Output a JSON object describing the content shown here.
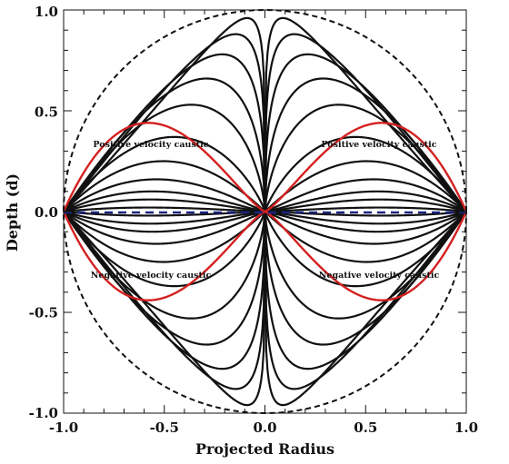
{
  "chart_data": {
    "type": "line",
    "title": "",
    "xlabel": "Projected Radius",
    "ylabel": "Depth (d)",
    "xlim": [
      -1.0,
      1.0
    ],
    "ylim": [
      -1.0,
      1.0
    ],
    "xticks": [
      "-1.0",
      "-0.5",
      "0.0",
      "0.5",
      "1.0"
    ],
    "yticks": [
      "-1.0",
      "-0.5",
      "0.0",
      "0.5",
      "1.0"
    ],
    "grid": false,
    "legend": "none",
    "colors": {
      "contour": "#111111",
      "caustic": "#d42020",
      "midline": "#1a237e",
      "boundary": "#111111"
    },
    "contour_levels_peak_depth": [
      0.02,
      0.06,
      0.1,
      0.16,
      0.25,
      0.37,
      0.53,
      0.66,
      0.78,
      0.88,
      0.96
    ],
    "caustic_peak": {
      "x": 0.58,
      "depth": 0.44
    },
    "boundary_radius": 1.0,
    "annotations": {
      "pos_left": "Positive velocity caustic",
      "pos_right": "Positive velocity caustic",
      "neg_left": "Negative velocity caustic",
      "neg_right": "Negative velocity caustic"
    }
  }
}
